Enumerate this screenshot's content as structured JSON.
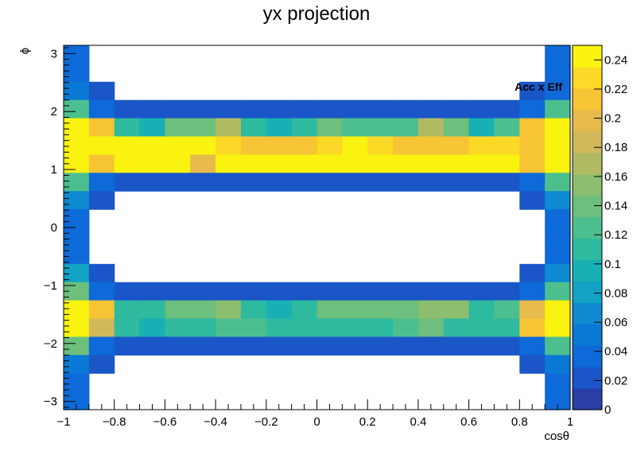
{
  "chart_data": {
    "type": "heatmap",
    "title": "yx projection",
    "xlabel": "cosθ",
    "ylabel": "ϕ",
    "zlabel": "Acc x Eff",
    "xlim": [
      -1,
      1
    ],
    "ylim": [
      -3.14159,
      3.14159
    ],
    "zlim": [
      0,
      0.25
    ],
    "nx": 20,
    "ny": 20,
    "x_ticks": [
      -1,
      -0.8,
      -0.6,
      -0.4,
      -0.2,
      0,
      0.2,
      0.4,
      0.6,
      0.8,
      1
    ],
    "x_tick_labels": [
      "−1",
      "−0.8",
      "−0.6",
      "−0.4",
      "−0.2",
      "0",
      "0.2",
      "0.4",
      "0.6",
      "0.8",
      "1"
    ],
    "y_ticks": [
      -3,
      -2,
      -1,
      0,
      1,
      2,
      3
    ],
    "y_tick_labels": [
      "−3",
      "−2",
      "−1",
      "0",
      "1",
      "2",
      "3"
    ],
    "z_ticks": [
      0,
      0.02,
      0.04,
      0.06,
      0.08,
      0.1,
      0.12,
      0.14,
      0.16,
      0.18,
      0.2,
      0.22,
      0.24
    ],
    "z_tick_labels": [
      "0",
      "0.02",
      "0.04",
      "0.06",
      "0.08",
      "0.1",
      "0.12",
      "0.14",
      "0.16",
      "0.18",
      "0.2",
      "0.22",
      "0.24"
    ],
    "values": [
      [
        0.04,
        null,
        null,
        null,
        null,
        null,
        null,
        null,
        null,
        null,
        null,
        null,
        null,
        null,
        null,
        null,
        null,
        null,
        null,
        0.04
      ],
      [
        0.04,
        null,
        null,
        null,
        null,
        null,
        null,
        null,
        null,
        null,
        null,
        null,
        null,
        null,
        null,
        null,
        null,
        null,
        null,
        0.04
      ],
      [
        0.05,
        0.02,
        null,
        null,
        null,
        null,
        null,
        null,
        null,
        null,
        null,
        null,
        null,
        null,
        null,
        null,
        null,
        null,
        0.02,
        0.04
      ],
      [
        0.13,
        0.04,
        0.02,
        0.02,
        0.02,
        0.02,
        0.02,
        0.02,
        0.02,
        0.02,
        0.02,
        0.02,
        0.02,
        0.02,
        0.02,
        0.02,
        0.02,
        0.02,
        0.04,
        0.13
      ],
      [
        0.25,
        0.21,
        0.11,
        0.1,
        0.14,
        0.14,
        0.17,
        0.11,
        0.1,
        0.11,
        0.14,
        0.13,
        0.13,
        0.13,
        0.17,
        0.14,
        0.1,
        0.13,
        0.21,
        0.25
      ],
      [
        0.25,
        0.24,
        0.25,
        0.25,
        0.25,
        0.25,
        0.23,
        0.22,
        0.22,
        0.22,
        0.23,
        0.25,
        0.23,
        0.21,
        0.22,
        0.22,
        0.23,
        0.23,
        0.22,
        0.24
      ],
      [
        0.24,
        0.22,
        0.24,
        0.25,
        0.25,
        0.2,
        0.25,
        0.24,
        0.25,
        0.25,
        0.24,
        0.24,
        0.24,
        0.24,
        0.24,
        0.25,
        0.24,
        0.24,
        0.22,
        0.24
      ],
      [
        0.12,
        0.04,
        0.02,
        0.02,
        0.02,
        0.02,
        0.02,
        0.02,
        0.02,
        0.02,
        0.02,
        0.02,
        0.02,
        0.02,
        0.02,
        0.02,
        0.02,
        0.02,
        0.04,
        0.12
      ],
      [
        0.06,
        0.02,
        null,
        null,
        null,
        null,
        null,
        null,
        null,
        null,
        null,
        null,
        null,
        null,
        null,
        null,
        null,
        null,
        0.02,
        0.06
      ],
      [
        0.04,
        null,
        null,
        null,
        null,
        null,
        null,
        null,
        null,
        null,
        null,
        null,
        null,
        null,
        null,
        null,
        null,
        null,
        null,
        0.04
      ],
      [
        0.04,
        null,
        null,
        null,
        null,
        null,
        null,
        null,
        null,
        null,
        null,
        null,
        null,
        null,
        null,
        null,
        null,
        null,
        null,
        0.03
      ],
      [
        0.04,
        null,
        null,
        null,
        null,
        null,
        null,
        null,
        null,
        null,
        null,
        null,
        null,
        null,
        null,
        null,
        null,
        null,
        null,
        0.04
      ],
      [
        0.08,
        0.02,
        null,
        null,
        null,
        null,
        null,
        null,
        null,
        null,
        null,
        null,
        null,
        null,
        null,
        null,
        null,
        null,
        0.02,
        0.07
      ],
      [
        0.14,
        0.03,
        0.02,
        0.02,
        0.02,
        0.02,
        0.02,
        0.02,
        0.02,
        0.02,
        0.02,
        0.02,
        0.02,
        0.02,
        0.02,
        0.02,
        0.02,
        0.02,
        0.03,
        0.13
      ],
      [
        0.25,
        0.22,
        0.11,
        0.11,
        0.14,
        0.14,
        0.16,
        0.11,
        0.1,
        0.11,
        0.14,
        0.14,
        0.14,
        0.14,
        0.16,
        0.15,
        0.11,
        0.13,
        0.2,
        0.25
      ],
      [
        0.24,
        0.19,
        0.11,
        0.09,
        0.11,
        0.11,
        0.13,
        0.13,
        0.11,
        0.11,
        0.11,
        0.11,
        0.11,
        0.13,
        0.14,
        0.11,
        0.11,
        0.11,
        0.22,
        0.25
      ],
      [
        0.14,
        0.04,
        0.02,
        0.02,
        0.02,
        0.02,
        0.02,
        0.02,
        0.02,
        0.02,
        0.02,
        0.02,
        0.02,
        0.02,
        0.02,
        0.02,
        0.02,
        0.02,
        0.04,
        0.13
      ],
      [
        0.05,
        0.02,
        null,
        null,
        null,
        null,
        null,
        null,
        null,
        null,
        null,
        null,
        null,
        null,
        null,
        null,
        null,
        null,
        0.02,
        0.05
      ],
      [
        0.04,
        null,
        null,
        null,
        null,
        null,
        null,
        null,
        null,
        null,
        null,
        null,
        null,
        null,
        null,
        null,
        null,
        null,
        null,
        0.04
      ],
      [
        0.04,
        null,
        null,
        null,
        null,
        null,
        null,
        null,
        null,
        null,
        null,
        null,
        null,
        null,
        null,
        null,
        null,
        null,
        null,
        0.04
      ]
    ],
    "palette": [
      "#2a3ea6",
      "#1a56c8",
      "#0e6ad9",
      "#0a79d6",
      "#0d8ad0",
      "#12a3c4",
      "#18b0b4",
      "#2dba9f",
      "#4dbf8f",
      "#6cbf7d",
      "#8dbd6e",
      "#b1ba63",
      "#d1b85a",
      "#e6bb4c",
      "#f6c435",
      "#fcd926",
      "#f9f30f"
    ],
    "grid": false,
    "legend": "colorbar-right"
  }
}
